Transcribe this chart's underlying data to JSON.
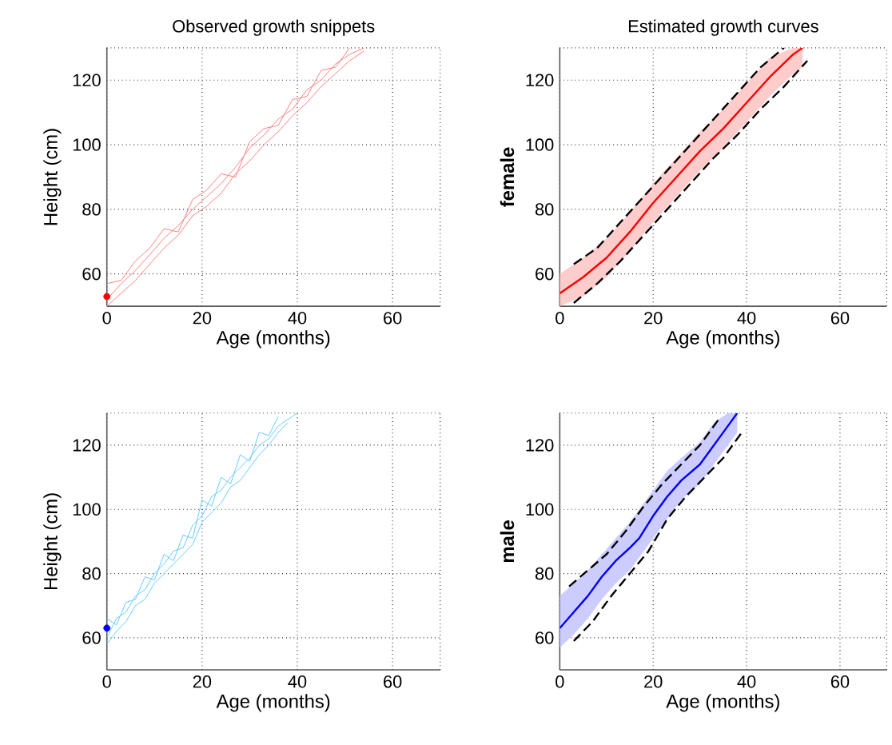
{
  "chart_data": [
    {
      "type": "line",
      "title": "Observed growth snippets",
      "xlabel": "Age (months)",
      "ylabel": "Height (cm)",
      "xlim": [
        0,
        70
      ],
      "ylim": [
        50,
        130
      ],
      "xticks": [
        0,
        20,
        40,
        60
      ],
      "yticks": [
        60,
        80,
        100,
        120
      ],
      "grid": true,
      "series": [
        {
          "color": "#ff8080",
          "x": [
            0,
            3,
            6,
            9,
            12,
            15,
            18,
            21,
            24,
            27,
            30,
            33,
            36,
            39,
            42,
            45,
            48,
            51,
            54
          ],
          "values": [
            52,
            57,
            61,
            66,
            71,
            75,
            80,
            84,
            88,
            93,
            99,
            103,
            108,
            111,
            117,
            120,
            125,
            128,
            130
          ]
        },
        {
          "color": "#ff8080",
          "x": [
            0,
            3,
            6,
            9,
            12,
            15,
            18,
            21,
            24,
            27,
            30,
            33,
            36,
            39,
            42,
            45,
            48,
            51
          ],
          "values": [
            57,
            58,
            64,
            68,
            74,
            73,
            83,
            86,
            91,
            90,
            101,
            105,
            106,
            114,
            115,
            123,
            124,
            130
          ]
        },
        {
          "color": "#ff8080",
          "x": [
            0,
            3,
            6,
            9,
            12,
            15,
            18,
            21,
            24,
            27,
            30,
            33,
            36,
            39,
            42,
            45,
            48,
            51,
            54
          ],
          "values": [
            50,
            54,
            58,
            63,
            68,
            72,
            78,
            81,
            85,
            91,
            95,
            100,
            104,
            109,
            113,
            118,
            122,
            126,
            129
          ]
        },
        {
          "type": "scatter",
          "marker": "circle",
          "color": "#ff0000",
          "x": [
            0
          ],
          "values": [
            53
          ]
        }
      ]
    },
    {
      "type": "line",
      "title": "Estimated growth curves",
      "xlabel": "Age (months)",
      "ylabel": "female",
      "xlim": [
        0,
        70
      ],
      "ylim": [
        50,
        130
      ],
      "xticks": [
        0,
        20,
        40,
        60
      ],
      "yticks": [
        60,
        80,
        100,
        120
      ],
      "grid": true,
      "series": [
        {
          "color": "#ff0000",
          "x": [
            0,
            5,
            10,
            15,
            20,
            25,
            30,
            35,
            40,
            45,
            50,
            52
          ],
          "values": [
            54,
            59,
            65,
            73,
            82,
            90,
            98,
            105,
            113,
            121,
            128,
            130
          ],
          "lower": [
            50,
            53,
            59,
            67,
            76,
            84,
            92,
            99,
            107,
            115,
            122,
            124
          ],
          "upper": [
            60,
            65,
            71,
            79,
            88,
            96,
            104,
            111,
            119,
            127,
            130,
            130
          ]
        },
        {
          "color": "#000000",
          "line_style": "dashed",
          "x": [
            3,
            8,
            13,
            18,
            23,
            28,
            33,
            38,
            43,
            48
          ],
          "values": [
            63,
            68,
            76,
            84,
            92,
            100,
            108,
            116,
            124,
            130
          ]
        },
        {
          "color": "#000000",
          "line_style": "dashed",
          "x": [
            3,
            8,
            13,
            18,
            23,
            28,
            33,
            38,
            43,
            48,
            53
          ],
          "values": [
            51,
            57,
            64,
            72,
            80,
            88,
            96,
            103,
            111,
            118,
            126
          ]
        }
      ]
    },
    {
      "type": "line",
      "xlabel": "Age (months)",
      "ylabel": "Height (cm)",
      "xlim": [
        0,
        70
      ],
      "ylim": [
        50,
        130
      ],
      "xticks": [
        0,
        20,
        40,
        60
      ],
      "yticks": [
        60,
        80,
        100,
        120
      ],
      "grid": true,
      "series": [
        {
          "color": "#66ccff",
          "x": [
            0,
            2,
            4,
            6,
            8,
            10,
            12,
            14,
            16,
            18,
            20,
            22,
            24,
            26,
            28,
            30,
            32,
            34,
            36,
            38,
            40
          ],
          "values": [
            60,
            66,
            68,
            73,
            75,
            80,
            83,
            87,
            88,
            95,
            98,
            104,
            106,
            110,
            113,
            116,
            120,
            122,
            126,
            128,
            130
          ]
        },
        {
          "color": "#66ccff",
          "x": [
            0,
            2,
            4,
            6,
            8,
            10,
            12,
            14,
            16,
            18,
            20,
            22,
            24,
            26,
            28,
            30,
            32,
            34,
            36
          ],
          "values": [
            66,
            64,
            71,
            72,
            79,
            78,
            86,
            84,
            92,
            91,
            103,
            101,
            110,
            108,
            117,
            115,
            124,
            123,
            129
          ]
        },
        {
          "color": "#66ccff",
          "x": [
            0,
            2,
            4,
            6,
            8,
            10,
            12,
            14,
            16,
            18,
            20,
            22,
            24,
            26,
            28,
            30,
            32,
            34,
            36,
            38
          ],
          "values": [
            58,
            62,
            65,
            70,
            72,
            77,
            80,
            83,
            86,
            89,
            96,
            99,
            102,
            107,
            109,
            113,
            117,
            120,
            124,
            127
          ]
        },
        {
          "type": "scatter",
          "marker": "circle",
          "color": "#0000ff",
          "x": [
            0
          ],
          "values": [
            63
          ]
        }
      ]
    },
    {
      "type": "line",
      "xlabel": "Age (months)",
      "ylabel": "male",
      "xlim": [
        0,
        70
      ],
      "ylim": [
        50,
        130
      ],
      "xticks": [
        0,
        20,
        40,
        60
      ],
      "yticks": [
        60,
        80,
        100,
        120
      ],
      "grid": true,
      "series": [
        {
          "color": "#0000ff",
          "x": [
            0,
            3,
            6,
            9,
            12,
            15,
            17,
            20,
            23,
            26,
            30,
            33,
            36,
            38
          ],
          "values": [
            63,
            68,
            73,
            79,
            84,
            88,
            91,
            98,
            104,
            109,
            114,
            120,
            126,
            130
          ],
          "lower": [
            57,
            61,
            66,
            72,
            77,
            81,
            85,
            91,
            97,
            103,
            108,
            114,
            120,
            124
          ],
          "upper": [
            73,
            77,
            81,
            86,
            91,
            96,
            100,
            106,
            112,
            116,
            121,
            127,
            130,
            130
          ]
        },
        {
          "color": "#000000",
          "line_style": "dashed",
          "x": [
            2,
            6,
            10,
            14,
            18,
            22,
            26,
            30,
            34
          ],
          "values": [
            76,
            81,
            86,
            93,
            101,
            108,
            114,
            120,
            128
          ]
        },
        {
          "color": "#000000",
          "line_style": "dashed",
          "x": [
            3,
            7,
            11,
            15,
            19,
            23,
            27,
            31,
            35,
            39
          ],
          "values": [
            59,
            65,
            73,
            80,
            87,
            97,
            104,
            110,
            116,
            124
          ]
        }
      ]
    }
  ]
}
